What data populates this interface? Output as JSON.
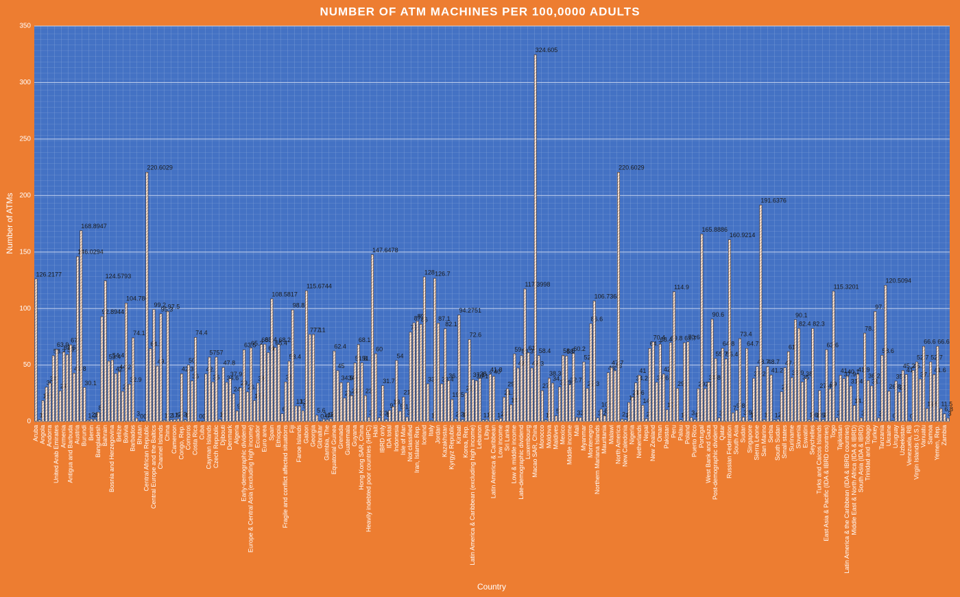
{
  "chart_data": {
    "type": "bar",
    "title": "NUMBER OF ATM MACHINES PER 100,0000 ADULTS",
    "x_label": "Country",
    "y_label": "Number of ATMs",
    "ylim": [
      0,
      350
    ],
    "yticks": [
      0,
      50,
      100,
      150,
      200,
      250,
      300,
      350
    ],
    "grid": true,
    "color": "#fbe5d6",
    "categories": [
      "Aruba",
      null,
      "Angola",
      null,
      "Andorra",
      null,
      "United Arab Emirates",
      null,
      "Armenia",
      null,
      "Antigua and Barbuda",
      null,
      "Austria",
      null,
      "Burundi",
      null,
      "Benin",
      null,
      "Bangladesh",
      null,
      "Bahrain",
      null,
      "Bosnia and Herzegovina",
      null,
      "Belize",
      null,
      "Bolivia",
      null,
      "Barbados",
      null,
      "Bhutan",
      null,
      "Central African Republic",
      null,
      "Central Europe and the Baltics",
      null,
      "Channel Islands",
      null,
      "China",
      null,
      "Cameroon",
      null,
      "Congo, Rep.",
      null,
      "Comoros",
      null,
      "Costa Rica",
      null,
      "Cuba",
      null,
      "Cayman Islands",
      null,
      "Czech Republic",
      null,
      "Djibouti",
      null,
      "Denmark",
      null,
      "Algeria",
      null,
      "Early-demographic dividend",
      null,
      "Europe & Central Asia (excluding high income)",
      null,
      "Ecuador",
      null,
      "Euro area",
      null,
      "Spain",
      null,
      "Ethiopia",
      null,
      "Fragile and conflict affected situations",
      null,
      "Fiji",
      null,
      "Faroe Islands",
      null,
      "Gabon",
      null,
      "Georgia",
      null,
      "Gibraltar",
      null,
      "Gambia, The",
      null,
      "Equatorial Guinea",
      null,
      "Grenada",
      null,
      "Guatemala",
      null,
      "Guyana",
      null,
      "Hong Kong SAR, China",
      null,
      "Heavily indebted poor countries (HIPC)",
      null,
      "Haiti",
      null,
      "IBRD only",
      null,
      "IDA total",
      null,
      "Indonesia",
      null,
      "Isle of Man",
      null,
      "Not classified",
      null,
      "Iran, Islamic Rep.",
      null,
      "Iceland",
      null,
      "Italy",
      null,
      "Jordan",
      null,
      "Kazakhstan",
      null,
      "Kyrgyz Republic",
      null,
      "Kiribati",
      null,
      "Korea, Rep.",
      null,
      "Latin America & Caribbean (excluding high income)",
      null,
      "Lebanon",
      null,
      "Libya",
      null,
      "Latin America & Caribbean",
      null,
      "Low income",
      null,
      "Sri Lanka",
      null,
      "Low & middle income",
      null,
      "Late-demographic dividend",
      null,
      "Luxembourg",
      null,
      "Macao SAR, China",
      null,
      "Morocco",
      null,
      "Moldova",
      null,
      "Maldives",
      null,
      "Mexico",
      null,
      "Middle income",
      null,
      "Mali",
      null,
      "Myanmar",
      null,
      "Montenegro",
      null,
      "Northern Mariana Islands",
      null,
      "Mauritania",
      null,
      "Malawi",
      null,
      "North America",
      null,
      "New Caledonia",
      null,
      "Nigeria",
      null,
      "Netherlands",
      null,
      "Nepal",
      null,
      "New Zealand",
      null,
      "Oman",
      null,
      "Pakistan",
      null,
      "Peru",
      null,
      "Palau",
      null,
      "Poland",
      null,
      "Puerto Rico",
      null,
      "Portugal",
      null,
      "West Bank and Gaza",
      null,
      "Post-demographic dividend",
      null,
      "Qatar",
      null,
      "Russian Federation",
      null,
      "South Asia",
      null,
      "Sudan",
      null,
      "Singapore",
      null,
      "Sierra Leone",
      null,
      "San Marino",
      null,
      "Serbia",
      null,
      "South Sudan",
      null,
      "Small states",
      null,
      "Suriname",
      null,
      "Slovenia",
      null,
      "Eswatini",
      null,
      "Seychelles",
      null,
      "Turks and Caicos Islands",
      null,
      "East Asia & Pacific (IDA & IBRD countries)",
      null,
      "Togo",
      null,
      "Tajikistan",
      null,
      "Latin America & the Caribbean (IDA & IBRD countries)",
      null,
      "Middle East & North Africa (IDA & IBRD)",
      null,
      "South Asia (IDA & IBRD)",
      null,
      "Trinidad and Tobago",
      null,
      "Turkey",
      null,
      "Tanzania",
      null,
      "Ukraine",
      null,
      "Uruguay",
      null,
      "Uzbekistan",
      null,
      "Venezuela, RB",
      null,
      "Virgin Islands (U.S.)",
      null,
      "Vanuatu",
      null,
      "Samoa",
      null,
      "Yemen, Rep.",
      null,
      "Zambia",
      null
    ],
    "values": [
      126.2177,
      1.5,
      18.5,
      30.4,
      34,
      58.3,
      63.9,
      27.1,
      61.6,
      59.3,
      67.9,
      42.8,
      146.0294,
      168.8947,
      30.1,
      1.2,
      2.1,
      1.9,
      8.2,
      92.8944,
      124.5793,
      53.4,
      54.4,
      42.4,
      44.2,
      26.7,
      104.786,
      32.9,
      74.1,
      3,
      0.5,
      0.5,
      220.6029,
      64.5,
      99.2,
      49.1,
      95.3,
      1.2,
      97.5,
      1.5,
      1.8,
      2.3,
      42.3,
      1.5,
      50,
      36,
      74.4,
      0.6,
      0.5,
      42.1,
      57,
      35,
      57,
      1.9,
      47.8,
      34.6,
      37.9,
      24.5,
      9.4,
      29.8,
      63.5,
      26.2,
      65.2,
      18.5,
      34,
      68.2,
      68.4,
      61,
      108.5817,
      65.4,
      68.2,
      6.9,
      35,
      53.4,
      98.8,
      13.7,
      13.6,
      9.5,
      115.6744,
      77.1,
      77.1,
      5.6,
      0.6,
      1.9,
      1.6,
      2.5,
      62.4,
      45,
      34.5,
      20.7,
      34.6,
      22.9,
      51.8,
      68.1,
      51.9,
      23,
      3.7,
      147.6478,
      60,
      3.3,
      31.7,
      1.9,
      9.8,
      13.2,
      54,
      9.1,
      21.7,
      3.9,
      79.1,
      87.3,
      89,
      86,
      128,
      33.4,
      1.1,
      126.7,
      87.1,
      33.4,
      82.1,
      36.2,
      19.5,
      2.3,
      94.2751,
      1.6,
      25.4,
      72.6,
      37.1,
      36.1,
      38.2,
      1.4,
      1.8,
      41.8,
      40,
      1.5,
      2.8,
      21.6,
      29.1,
      14.9,
      59.8,
      47.3,
      58.3,
      117.3998,
      61,
      47.3,
      324.605,
      58.4,
      27.4,
      1.5,
      38.3,
      34,
      5,
      30.5,
      58.5,
      58,
      32.7,
      60.2,
      3.7,
      3.6,
      52.7,
      29.3,
      86.6,
      106.7368,
      3.2,
      10.9,
      5.3,
      43.2,
      47.7,
      45,
      220.6029,
      2.2,
      1.5,
      16.9,
      21.6,
      34.2,
      41,
      14.3,
      2.5,
      64.7,
      70.4,
      34.6,
      68.4,
      42,
      10.4,
      69.8,
      114.9,
      29.3,
      1.4,
      69.7,
      70.6,
      3.5,
      1.8,
      29.1,
      165.8886,
      29.1,
      34.8,
      90.6,
      55.7,
      3.2,
      64.8,
      55.4,
      160.9214,
      7.7,
      9.8,
      73.4,
      3.9,
      64.7,
      1.4,
      38.2,
      48.7,
      191.6376,
      1.7,
      48.7,
      41.2,
      1.4,
      2,
      26.3,
      47.6,
      61.9,
      38.9,
      90.1,
      82.4,
      35,
      38,
      1.6,
      82.3,
      1.5,
      27.4,
      1.7,
      63.6,
      29,
      115.3201,
      3.2,
      41,
      37.9,
      40.1,
      31.4,
      14.2,
      41.9,
      3.3,
      78.2,
      36.2,
      31.5,
      97.4,
      3.1,
      58.6,
      120.5094,
      26.8,
      0.8,
      35.8,
      26,
      45.2,
      41.6,
      0.6,
      45.2,
      52.7,
      37.6,
      66.6,
      11.5,
      52.7,
      41.6,
      66.6,
      11.5,
      6.8,
      3
    ]
  }
}
